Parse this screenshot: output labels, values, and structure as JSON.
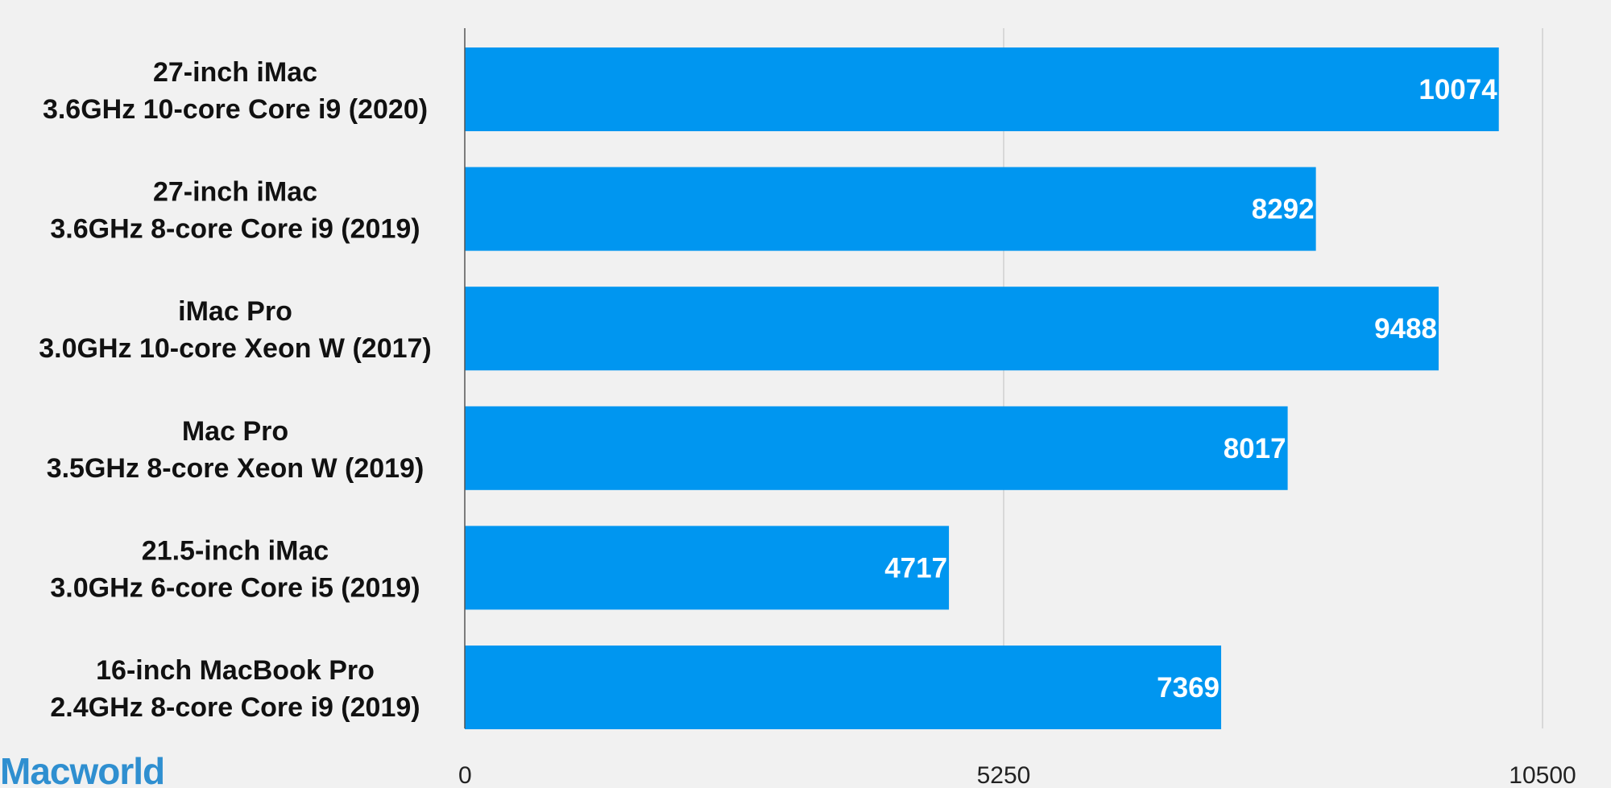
{
  "brand": {
    "name": "Macworld",
    "color": "#2f8fd0"
  },
  "colors": {
    "bar": "#0096f0",
    "background": "#f1f1f1",
    "gridline": "#cfcfcf",
    "axis": "#555555"
  },
  "chart_data": {
    "type": "bar",
    "orientation": "horizontal",
    "title": "",
    "xlabel": "",
    "ylabel": "",
    "xlim": [
      0,
      10500
    ],
    "ticks": [
      0,
      5250,
      10500
    ],
    "tick_labels": [
      "0",
      "5250",
      "10500"
    ],
    "grid": true,
    "legend": "none",
    "categories": [
      [
        "27-inch iMac",
        "3.6GHz 10-core Core i9 (2020)"
      ],
      [
        "27-inch iMac",
        "3.6GHz 8-core Core i9 (2019)"
      ],
      [
        "iMac Pro",
        "3.0GHz 10-core Xeon W (2017)"
      ],
      [
        "Mac Pro",
        "3.5GHz 8-core Xeon W (2019)"
      ],
      [
        "21.5-inch iMac",
        "3.0GHz 6-core Core i5 (2019)"
      ],
      [
        "16-inch MacBook Pro",
        "2.4GHz 8-core Core i9 (2019)"
      ]
    ],
    "values": [
      10074,
      8292,
      9488,
      8017,
      4717,
      7369
    ],
    "data_labels": [
      "10074",
      "8292",
      "9488",
      "8017",
      "4717",
      "7369"
    ]
  }
}
